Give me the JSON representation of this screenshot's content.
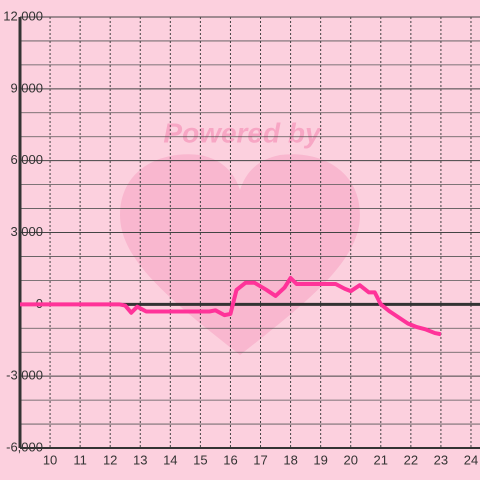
{
  "chart_data": {
    "type": "line",
    "watermark": "Powered by",
    "x": [
      9,
      12.3,
      12.5,
      12.7,
      12.9,
      13.2,
      15.3,
      15.5,
      15.8,
      16.0,
      16.2,
      16.5,
      16.8,
      17.2,
      17.5,
      17.8,
      18.0,
      18.2,
      19.5,
      19.8,
      20.0,
      20.3,
      20.6,
      20.8,
      21.0,
      21.3,
      21.6,
      21.9,
      22.2,
      22.5,
      22.8,
      23.0
    ],
    "series": [
      {
        "color": "#ff3399",
        "values": [
          0,
          0,
          -50,
          -350,
          -100,
          -300,
          -300,
          -250,
          -450,
          -400,
          600,
          900,
          900,
          600,
          350,
          700,
          1100,
          850,
          850,
          650,
          550,
          800,
          500,
          500,
          0,
          -300,
          -550,
          -800,
          -950,
          -1050,
          -1200,
          -1250
        ]
      }
    ],
    "xlim": [
      9,
      24.3
    ],
    "xticks": [
      10,
      11,
      12,
      13,
      14,
      15,
      16,
      17,
      18,
      19,
      20,
      21,
      22,
      23,
      24
    ],
    "ylim": [
      -6000,
      12000
    ],
    "yticks": [
      {
        "value": -6000,
        "label": "-6,000"
      },
      {
        "value": -3000,
        "label": "-3,000"
      },
      0,
      {
        "value": 3000,
        "label": "3,000"
      },
      {
        "value": 6000,
        "label": "6,000"
      },
      {
        "value": 9000,
        "label": "9,000"
      },
      {
        "value": 12000,
        "label": "12,000"
      }
    ],
    "y_minor_ticks": [
      -5000,
      -4000,
      -2000,
      -1000,
      1000,
      2000,
      4000,
      5000,
      7000,
      8000,
      10000,
      11000
    ],
    "grid": true
  }
}
